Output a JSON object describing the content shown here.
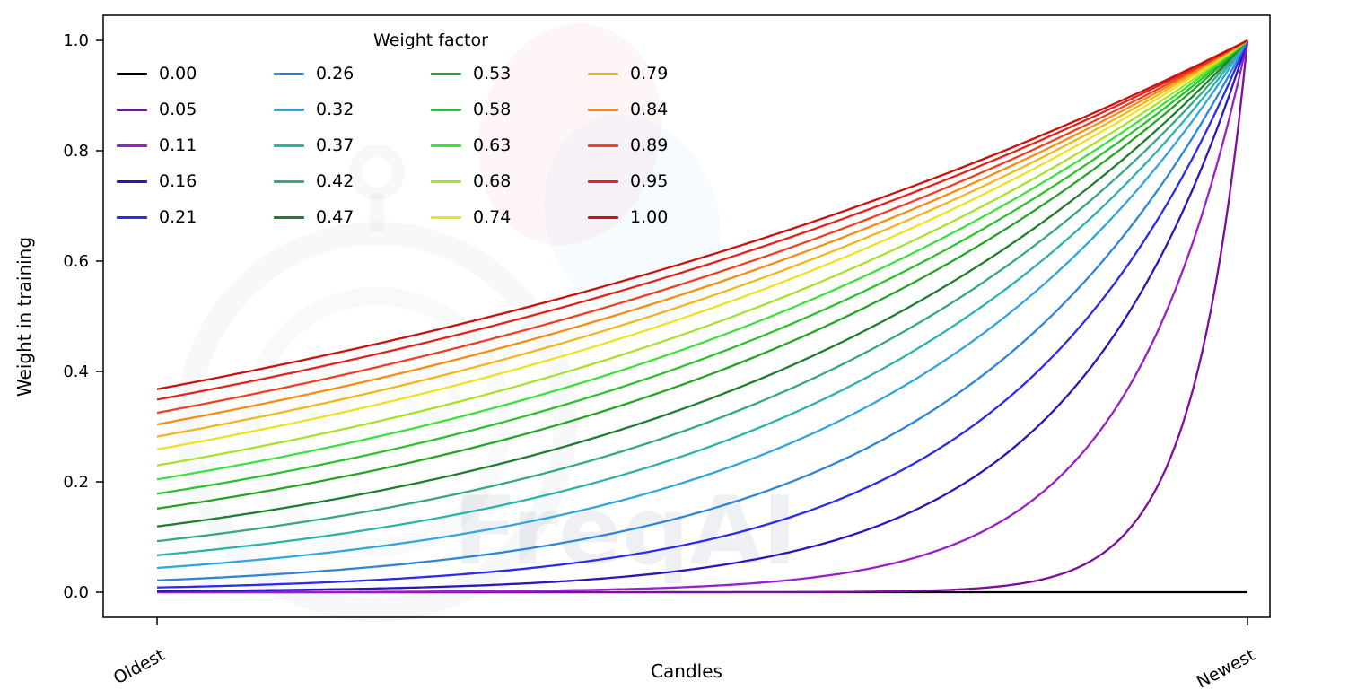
{
  "chart_data": {
    "type": "line",
    "title": "",
    "xlabel": "Candles",
    "ylabel": "Weight in training",
    "x_tick_labels": [
      "Oldest",
      "Newest"
    ],
    "y_ticks": [
      "0.0",
      "0.2",
      "0.4",
      "0.6",
      "0.8",
      "1.0"
    ],
    "ylim": [
      0,
      1.0
    ],
    "grid": false,
    "legend": {
      "title": "Weight factor",
      "position": "upper left",
      "columns": 4
    },
    "curve_formula": "weight(x) = exp(-(1 - x) / factor), x in [0,1] from Oldest to Newest; factor 0.00 is flat at 0",
    "series": [
      {
        "label": "0.00",
        "factor": 0.0,
        "color": "#000000"
      },
      {
        "label": "0.05",
        "factor": 0.05,
        "color": "#7d0d9e"
      },
      {
        "label": "0.11",
        "factor": 0.11,
        "color": "#9a1fca"
      },
      {
        "label": "0.16",
        "factor": 0.16,
        "color": "#2a16bd"
      },
      {
        "label": "0.21",
        "factor": 0.21,
        "color": "#2b2bee"
      },
      {
        "label": "0.26",
        "factor": 0.26,
        "color": "#2e86d9"
      },
      {
        "label": "0.32",
        "factor": 0.32,
        "color": "#30a5e0"
      },
      {
        "label": "0.37",
        "factor": 0.37,
        "color": "#2ab3ab"
      },
      {
        "label": "0.42",
        "factor": 0.42,
        "color": "#34a97e"
      },
      {
        "label": "0.47",
        "factor": 0.47,
        "color": "#1e7d2e"
      },
      {
        "label": "0.53",
        "factor": 0.53,
        "color": "#25a525"
      },
      {
        "label": "0.58",
        "factor": 0.58,
        "color": "#2bc22b"
      },
      {
        "label": "0.63",
        "factor": 0.63,
        "color": "#3ae23a"
      },
      {
        "label": "0.68",
        "factor": 0.68,
        "color": "#a9e02c"
      },
      {
        "label": "0.74",
        "factor": 0.74,
        "color": "#eee21f"
      },
      {
        "label": "0.79",
        "factor": 0.79,
        "color": "#f6b41b"
      },
      {
        "label": "0.84",
        "factor": 0.84,
        "color": "#f88c12"
      },
      {
        "label": "0.89",
        "factor": 0.89,
        "color": "#ef4023"
      },
      {
        "label": "0.95",
        "factor": 0.95,
        "color": "#e2231c"
      },
      {
        "label": "1.00",
        "factor": 1.0,
        "color": "#c9120d"
      }
    ]
  },
  "watermark": {
    "text": "FreqAI"
  }
}
